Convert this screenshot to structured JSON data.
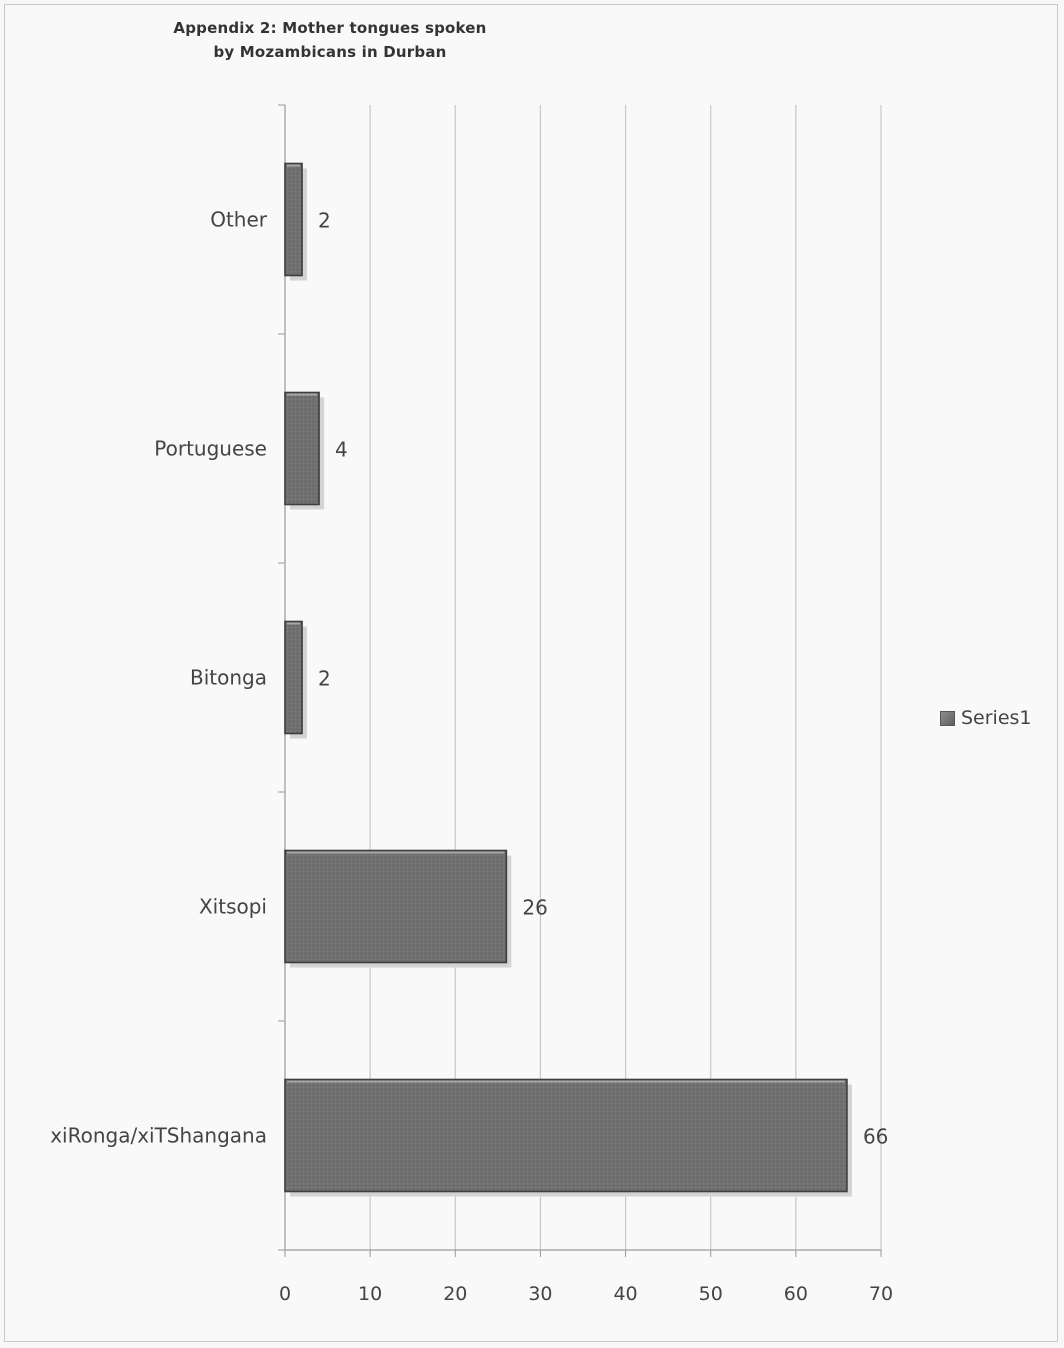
{
  "chart_data": {
    "type": "bar",
    "orientation": "horizontal",
    "title": "Appendix 2: Mother tongues spoken by Mozambicans in Durban",
    "title_lines": [
      "Appendix 2: Mother tongues spoken",
      "by Mozambicans in Durban"
    ],
    "categories": [
      "Other",
      "Portuguese",
      "Bitonga",
      "Xitsopi",
      "xiRonga/xiTShangana"
    ],
    "series": [
      {
        "name": "Series1",
        "values": [
          2,
          4,
          2,
          26,
          66
        ]
      }
    ],
    "data_labels": [
      "2",
      "4",
      "2",
      "26",
      "66"
    ],
    "xlim": [
      0,
      70
    ],
    "x_ticks": [
      0,
      10,
      20,
      30,
      40,
      50,
      60,
      70
    ],
    "x_tick_labels": [
      "0",
      "10",
      "20",
      "30",
      "40",
      "50",
      "60",
      "70"
    ],
    "xlabel": "",
    "ylabel": "",
    "grid": "vertical",
    "legend": "right",
    "bar_color": "#6e6e6e",
    "grid_color": "#c8c8c8"
  }
}
